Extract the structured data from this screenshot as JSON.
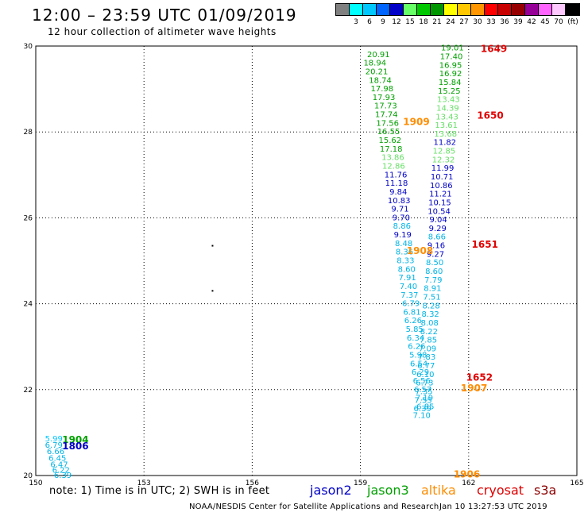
{
  "header": {
    "title": "12:00 – 23:59 UTC 01/09/2019",
    "subtitle": "12 hour collection of altimeter wave heights"
  },
  "color_scale": {
    "unit": "(ft)",
    "bins": [
      {
        "label": "",
        "color": "#808080"
      },
      {
        "label": "3",
        "color": "#00ffff"
      },
      {
        "label": "6",
        "color": "#00c8ff"
      },
      {
        "label": "9",
        "color": "#0064ff"
      },
      {
        "label": "12",
        "color": "#0000c8"
      },
      {
        "label": "15",
        "color": "#66ff66"
      },
      {
        "label": "18",
        "color": "#00c800"
      },
      {
        "label": "21",
        "color": "#009600"
      },
      {
        "label": "24",
        "color": "#ffff00"
      },
      {
        "label": "27",
        "color": "#ffc800"
      },
      {
        "label": "30",
        "color": "#ff9600"
      },
      {
        "label": "33",
        "color": "#ff0000"
      },
      {
        "label": "36",
        "color": "#c80000"
      },
      {
        "label": "39",
        "color": "#960000"
      },
      {
        "label": "42",
        "color": "#960096"
      },
      {
        "label": "45",
        "color": "#ff64ff"
      },
      {
        "label": "70",
        "color": "#ffc8ff"
      },
      {
        "label": "",
        "color": "#000000"
      }
    ]
  },
  "chart_data": {
    "type": "scatter",
    "title": "12:00 – 23:59 UTC 01/09/2019",
    "xlim": [
      150,
      165
    ],
    "ylim": [
      20,
      30
    ],
    "x_ticks": [
      "150",
      "153",
      "156",
      "159",
      "162",
      "165"
    ],
    "y_ticks": [
      "20",
      "22",
      "24",
      "26",
      "28",
      "30"
    ],
    "grid": true,
    "labels": [
      {
        "x": 159.5,
        "y": 29.8,
        "text": "20.91",
        "c": 21
      },
      {
        "x": 159.4,
        "y": 29.6,
        "text": "18.94",
        "c": 18
      },
      {
        "x": 159.45,
        "y": 29.4,
        "text": "20.21",
        "c": 21
      },
      {
        "x": 159.55,
        "y": 29.2,
        "text": "18.74",
        "c": 18
      },
      {
        "x": 159.6,
        "y": 29.0,
        "text": "17.98",
        "c": 18
      },
      {
        "x": 159.65,
        "y": 28.8,
        "text": "17.93",
        "c": 18
      },
      {
        "x": 159.7,
        "y": 28.6,
        "text": "17.73",
        "c": 18
      },
      {
        "x": 159.72,
        "y": 28.4,
        "text": "17.74",
        "c": 18
      },
      {
        "x": 159.75,
        "y": 28.2,
        "text": "17.56",
        "c": 18
      },
      {
        "x": 159.78,
        "y": 28.0,
        "text": "16.55",
        "c": 18
      },
      {
        "x": 159.82,
        "y": 27.8,
        "text": "15.62",
        "c": 18
      },
      {
        "x": 159.85,
        "y": 27.6,
        "text": "17.18",
        "c": 18
      },
      {
        "x": 159.9,
        "y": 27.4,
        "text": "13.86",
        "c": 15
      },
      {
        "x": 159.92,
        "y": 27.2,
        "text": "12.86",
        "c": 15
      },
      {
        "x": 159.98,
        "y": 27.0,
        "text": "11.76",
        "c": 12
      },
      {
        "x": 160.0,
        "y": 26.8,
        "text": "11.18",
        "c": 12
      },
      {
        "x": 160.05,
        "y": 26.6,
        "text": "9.84",
        "c": 12
      },
      {
        "x": 160.07,
        "y": 26.4,
        "text": "10.83",
        "c": 12
      },
      {
        "x": 160.1,
        "y": 26.2,
        "text": "9.71",
        "c": 12
      },
      {
        "x": 160.13,
        "y": 26.0,
        "text": "9.70",
        "c": 12
      },
      {
        "x": 160.15,
        "y": 25.8,
        "text": "8.86",
        "c": 9
      },
      {
        "x": 160.17,
        "y": 25.6,
        "text": "9.19",
        "c": 12
      },
      {
        "x": 160.2,
        "y": 25.4,
        "text": "8.48",
        "c": 9
      },
      {
        "x": 160.22,
        "y": 25.2,
        "text": "8.36",
        "c": 9
      },
      {
        "x": 160.25,
        "y": 25.0,
        "text": "8.33",
        "c": 9
      },
      {
        "x": 160.28,
        "y": 24.8,
        "text": "8.60",
        "c": 9
      },
      {
        "x": 160.3,
        "y": 24.6,
        "text": "7.91",
        "c": 9
      },
      {
        "x": 160.33,
        "y": 24.4,
        "text": "7.40",
        "c": 9
      },
      {
        "x": 160.36,
        "y": 24.2,
        "text": "7.37",
        "c": 9
      },
      {
        "x": 160.4,
        "y": 24.0,
        "text": "6.79",
        "c": 9
      },
      {
        "x": 160.43,
        "y": 23.8,
        "text": "6.81",
        "c": 9
      },
      {
        "x": 160.46,
        "y": 23.6,
        "text": "6.26",
        "c": 9
      },
      {
        "x": 160.5,
        "y": 23.4,
        "text": "5.85",
        "c": 9
      },
      {
        "x": 160.53,
        "y": 23.2,
        "text": "6.34",
        "c": 9
      },
      {
        "x": 160.56,
        "y": 23.0,
        "text": "6.26",
        "c": 9
      },
      {
        "x": 160.6,
        "y": 22.8,
        "text": "5.98",
        "c": 9
      },
      {
        "x": 160.62,
        "y": 22.6,
        "text": "6.54",
        "c": 9
      },
      {
        "x": 160.66,
        "y": 22.4,
        "text": "6.29",
        "c": 9
      },
      {
        "x": 160.7,
        "y": 22.2,
        "text": "6.56",
        "c": 9
      },
      {
        "x": 160.73,
        "y": 22.0,
        "text": "6.57",
        "c": 9
      },
      {
        "x": 160.77,
        "y": 21.8,
        "text": "7.19",
        "c": 9
      },
      {
        "x": 160.8,
        "y": 21.6,
        "text": "6.85",
        "c": 9
      },
      {
        "x": 161.55,
        "y": 29.95,
        "text": "19.01",
        "c": 18
      },
      {
        "x": 161.52,
        "y": 29.75,
        "text": "17.40",
        "c": 18
      },
      {
        "x": 161.5,
        "y": 29.55,
        "text": "16.95",
        "c": 18
      },
      {
        "x": 161.5,
        "y": 29.35,
        "text": "16.92",
        "c": 18
      },
      {
        "x": 161.48,
        "y": 29.15,
        "text": "15.84",
        "c": 18
      },
      {
        "x": 161.46,
        "y": 28.95,
        "text": "15.25",
        "c": 18
      },
      {
        "x": 161.44,
        "y": 28.75,
        "text": "13.43",
        "c": 15
      },
      {
        "x": 161.42,
        "y": 28.55,
        "text": "14.39",
        "c": 15
      },
      {
        "x": 161.4,
        "y": 28.35,
        "text": "13.43",
        "c": 15
      },
      {
        "x": 161.38,
        "y": 28.15,
        "text": "13.61",
        "c": 15
      },
      {
        "x": 161.36,
        "y": 27.95,
        "text": "13.68",
        "c": 15
      },
      {
        "x": 161.34,
        "y": 27.75,
        "text": "11.82",
        "c": 12
      },
      {
        "x": 161.32,
        "y": 27.55,
        "text": "12.85",
        "c": 15
      },
      {
        "x": 161.3,
        "y": 27.35,
        "text": "12.32",
        "c": 15
      },
      {
        "x": 161.28,
        "y": 27.15,
        "text": "11.99",
        "c": 12
      },
      {
        "x": 161.26,
        "y": 26.95,
        "text": "10.71",
        "c": 12
      },
      {
        "x": 161.24,
        "y": 26.75,
        "text": "10.86",
        "c": 12
      },
      {
        "x": 161.22,
        "y": 26.55,
        "text": "11.21",
        "c": 12
      },
      {
        "x": 161.2,
        "y": 26.35,
        "text": "10.15",
        "c": 12
      },
      {
        "x": 161.18,
        "y": 26.15,
        "text": "10.54",
        "c": 12
      },
      {
        "x": 161.16,
        "y": 25.95,
        "text": "9.04",
        "c": 12
      },
      {
        "x": 161.14,
        "y": 25.75,
        "text": "9.29",
        "c": 12
      },
      {
        "x": 161.12,
        "y": 25.55,
        "text": "8.66",
        "c": 9
      },
      {
        "x": 161.1,
        "y": 25.35,
        "text": "9.16",
        "c": 12
      },
      {
        "x": 161.08,
        "y": 25.15,
        "text": "9.27",
        "c": 12
      },
      {
        "x": 161.06,
        "y": 24.95,
        "text": "8.50",
        "c": 9
      },
      {
        "x": 161.04,
        "y": 24.75,
        "text": "8.60",
        "c": 9
      },
      {
        "x": 161.02,
        "y": 24.55,
        "text": "7.79",
        "c": 9
      },
      {
        "x": 161.0,
        "y": 24.35,
        "text": "8.91",
        "c": 9
      },
      {
        "x": 160.98,
        "y": 24.15,
        "text": "7.51",
        "c": 9
      },
      {
        "x": 160.96,
        "y": 23.95,
        "text": "8.28",
        "c": 9
      },
      {
        "x": 160.94,
        "y": 23.75,
        "text": "8.32",
        "c": 9
      },
      {
        "x": 160.92,
        "y": 23.55,
        "text": "8.08",
        "c": 9
      },
      {
        "x": 160.9,
        "y": 23.35,
        "text": "8.22",
        "c": 9
      },
      {
        "x": 160.88,
        "y": 23.15,
        "text": "7.85",
        "c": 9
      },
      {
        "x": 160.86,
        "y": 22.95,
        "text": "7.09",
        "c": 9
      },
      {
        "x": 160.84,
        "y": 22.75,
        "text": "7.83",
        "c": 9
      },
      {
        "x": 160.82,
        "y": 22.55,
        "text": "6.77",
        "c": 9
      },
      {
        "x": 160.8,
        "y": 22.35,
        "text": "6.10",
        "c": 9
      },
      {
        "x": 160.78,
        "y": 22.15,
        "text": "6.73",
        "c": 9
      },
      {
        "x": 160.76,
        "y": 21.95,
        "text": "7.35",
        "c": 9
      },
      {
        "x": 160.74,
        "y": 21.75,
        "text": "7.55",
        "c": 9
      },
      {
        "x": 160.72,
        "y": 21.55,
        "text": "6.39",
        "c": 9
      },
      {
        "x": 160.7,
        "y": 21.4,
        "text": "7.10",
        "c": 9
      },
      {
        "x": 150.5,
        "y": 20.85,
        "text": "5.99",
        "c": 6
      },
      {
        "x": 150.5,
        "y": 20.7,
        "text": "6.79",
        "c": 9
      },
      {
        "x": 150.55,
        "y": 20.55,
        "text": "6.66",
        "c": 9
      },
      {
        "x": 150.6,
        "y": 20.4,
        "text": "6.45",
        "c": 9
      },
      {
        "x": 150.65,
        "y": 20.25,
        "text": "6.47",
        "c": 9
      },
      {
        "x": 150.7,
        "y": 20.12,
        "text": "6.22",
        "c": 9
      },
      {
        "x": 150.75,
        "y": 20.0,
        "text": "6.39",
        "c": 9
      }
    ],
    "pass_ids": [
      {
        "x": 162.7,
        "y": 29.95,
        "text": "1649",
        "sat": "cryosat"
      },
      {
        "x": 162.6,
        "y": 28.4,
        "text": "1650",
        "sat": "cryosat"
      },
      {
        "x": 160.55,
        "y": 28.25,
        "text": "1909",
        "sat": "altika"
      },
      {
        "x": 162.45,
        "y": 25.4,
        "text": "1651",
        "sat": "cryosat"
      },
      {
        "x": 160.65,
        "y": 25.25,
        "text": "1908",
        "sat": "altika"
      },
      {
        "x": 162.3,
        "y": 22.3,
        "text": "1652",
        "sat": "cryosat"
      },
      {
        "x": 162.15,
        "y": 22.05,
        "text": "1907",
        "sat": "altika"
      },
      {
        "x": 161.95,
        "y": 20.05,
        "text": "1906",
        "sat": "altika"
      },
      {
        "x": 151.1,
        "y": 20.85,
        "text": "1904",
        "sat": "jason3"
      },
      {
        "x": 151.1,
        "y": 20.7,
        "text": "1806",
        "sat": "jason2"
      }
    ],
    "dots": [
      {
        "x": 154.9,
        "y": 25.35
      },
      {
        "x": 154.9,
        "y": 24.3
      }
    ]
  },
  "footer": {
    "note": "note:  1) Time is in UTC;  2) SWH is in feet",
    "legend": [
      {
        "name": "jason2",
        "color": "#0000c8"
      },
      {
        "name": "jason3",
        "color": "#00a000"
      },
      {
        "name": "altika",
        "color": "#ff8c00"
      },
      {
        "name": "cryosat",
        "color": "#e00000"
      },
      {
        "name": "s3a",
        "color": "#8b0000"
      }
    ],
    "credit": "NOAA/NESDIS Center for Satellite Applications and Research",
    "timestamp": "Jan 10 13:27:53 UTC 2019"
  }
}
